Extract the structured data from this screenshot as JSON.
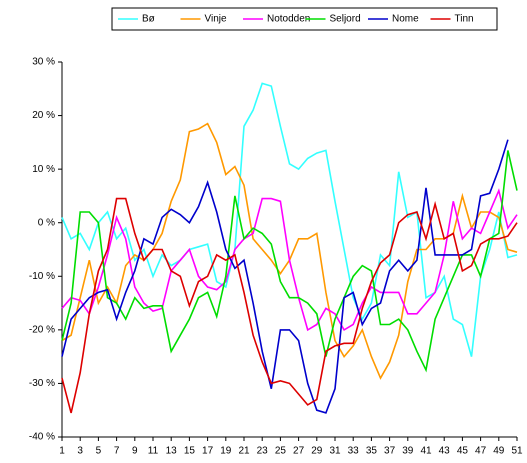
{
  "chart_data": {
    "type": "line",
    "x": [
      1,
      2,
      3,
      4,
      5,
      6,
      7,
      8,
      9,
      10,
      11,
      12,
      13,
      14,
      15,
      16,
      17,
      18,
      19,
      20,
      21,
      22,
      23,
      24,
      25,
      26,
      27,
      28,
      29,
      30,
      31,
      32,
      33,
      34,
      35,
      36,
      37,
      38,
      39,
      40,
      41,
      42,
      43,
      44,
      45,
      46,
      47,
      48,
      49,
      50,
      51
    ],
    "series": [
      {
        "name": "Bø",
        "color": "#33ffff",
        "values": [
          1,
          -3,
          -2,
          -5,
          0,
          2,
          -3,
          -1,
          -7,
          -5,
          -10,
          -6,
          -8,
          -7,
          -5,
          -4.5,
          -4,
          -11,
          -12,
          -5,
          18,
          21,
          26,
          25.5,
          18,
          11,
          10,
          12,
          13,
          13.5,
          4,
          -5,
          -14,
          -18,
          -15,
          -6,
          -8,
          9.5,
          1,
          2,
          -14,
          -13,
          -10,
          -18,
          -19,
          -25,
          -10,
          -5,
          2,
          -6.5,
          -6
        ]
      },
      {
        "name": "Vinje",
        "color": "#ff9900",
        "values": [
          -22,
          -21,
          -14,
          -7,
          -15,
          -12,
          -15,
          -8,
          -6,
          -7,
          -5,
          -2,
          4,
          8,
          17,
          17.5,
          18.5,
          15,
          9,
          10.5,
          7,
          -3,
          -5,
          -7,
          -9.5,
          -7,
          -3,
          -3,
          -2,
          -13,
          -22,
          -25,
          -23,
          -20,
          -25,
          -29,
          -26,
          -21,
          -11,
          -5,
          -5,
          -3,
          -3,
          -2,
          5,
          -1,
          2,
          2,
          1,
          -5,
          -5.5
        ]
      },
      {
        "name": "Notodden",
        "color": "#ff00ff",
        "values": [
          -16,
          -14,
          -14.5,
          -17,
          -12,
          -6,
          1,
          -3,
          -12,
          -15,
          -16.5,
          -16,
          -9,
          -7,
          -5,
          -10,
          -12,
          -12.5,
          -11,
          -5,
          -3,
          -2,
          4.5,
          4.5,
          4,
          -7,
          -14,
          -20,
          -19,
          -16,
          -17,
          -20,
          -19,
          -15,
          -12,
          -13,
          -13,
          -13,
          -17,
          -17,
          -15,
          -13,
          -6,
          4,
          -3,
          -1,
          -2,
          2,
          6,
          -1,
          1.5
        ]
      },
      {
        "name": "Seljord",
        "color": "#00dd00",
        "values": [
          -22,
          -15,
          2,
          2,
          0,
          -14,
          -15,
          -18,
          -14,
          -16,
          -15.5,
          -15.5,
          -24,
          -21,
          -18,
          -14,
          -13,
          -17.5,
          -10,
          5,
          -3,
          -1,
          -2,
          -4,
          -11,
          -14,
          -14,
          -15,
          -17,
          -25,
          -18,
          -14,
          -10,
          -8,
          -9,
          -19,
          -19,
          -18,
          -20,
          -24,
          -27.5,
          -18,
          -14,
          -10,
          -6,
          -6,
          -10,
          -3,
          -2,
          13.5,
          6
        ]
      },
      {
        "name": "Nome",
        "color": "#0000cc",
        "values": [
          -25,
          -18,
          -16,
          -14,
          -13,
          -12.5,
          -18,
          -13,
          -9,
          -3,
          -4,
          1,
          2.5,
          1.5,
          0,
          3,
          7.5,
          2,
          -5,
          -8.5,
          -7,
          -15,
          -24,
          -31,
          -20,
          -20,
          -22,
          -30,
          -35,
          -35.5,
          -31,
          -14,
          -13,
          -19,
          -16,
          -15,
          -9,
          -7,
          -9,
          -7,
          6.5,
          -6,
          -6,
          -6,
          -6,
          -5,
          5,
          5.5,
          10,
          15.5,
          null
        ]
      },
      {
        "name": "Tinn",
        "color": "#dd0000",
        "values": [
          -29,
          -35.5,
          -28,
          -17,
          -9,
          -5,
          4.5,
          4.5,
          -2,
          -7,
          -5,
          -5,
          -9,
          -10,
          -15.5,
          -11,
          -10,
          -6,
          -7,
          -6,
          -13,
          -21,
          -26,
          -30,
          -29.5,
          -30,
          -32,
          -34,
          -33,
          -24,
          -23,
          -22.5,
          -22.5,
          -16,
          -11,
          -7.5,
          -6,
          0,
          1.5,
          2,
          -3,
          3.5,
          -3,
          -2,
          -9,
          -8,
          -4,
          -3,
          -3,
          -2.5,
          0
        ]
      }
    ],
    "xlim": [
      1,
      51
    ],
    "xticks": [
      1,
      3,
      5,
      7,
      9,
      11,
      13,
      15,
      17,
      19,
      21,
      23,
      25,
      27,
      29,
      31,
      33,
      35,
      37,
      39,
      41,
      43,
      45,
      47,
      49,
      51
    ],
    "ylim": [
      -40,
      30
    ],
    "yticks": [
      {
        "value": -40,
        "label": "-40 %"
      },
      {
        "value": -30,
        "label": "-30 %"
      },
      {
        "value": -20,
        "label": "-20 %"
      },
      {
        "value": -10,
        "label": "-10 %"
      },
      {
        "value": 0,
        "label": "0 %"
      },
      {
        "value": 10,
        "label": "10 %"
      },
      {
        "value": 20,
        "label": "20 %"
      },
      {
        "value": 30,
        "label": "30 %"
      }
    ],
    "legend": "top"
  }
}
